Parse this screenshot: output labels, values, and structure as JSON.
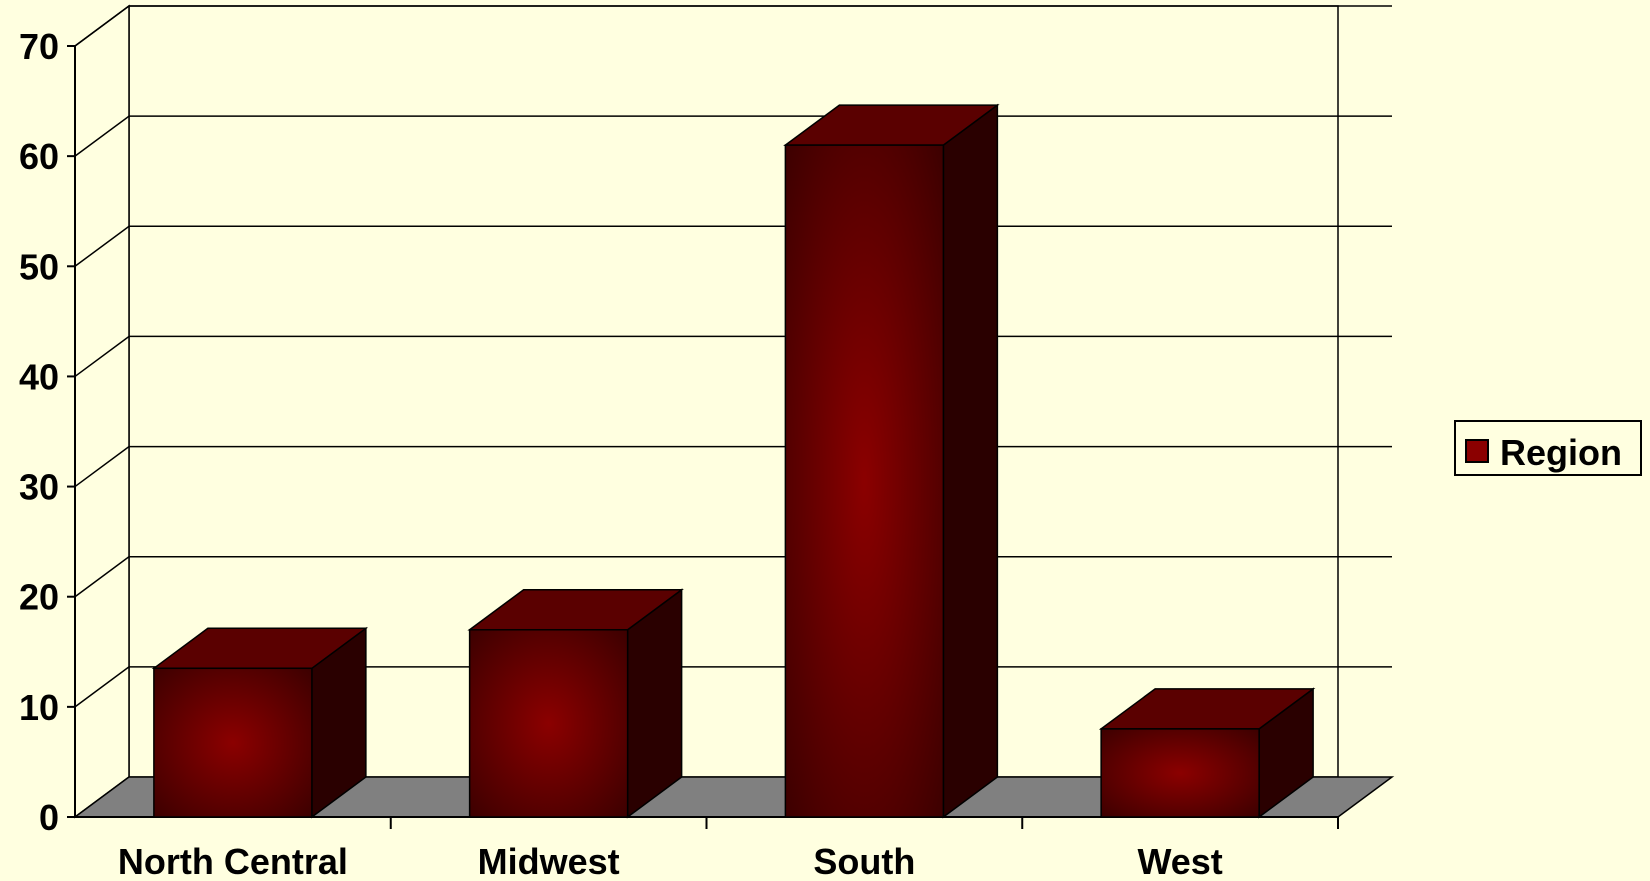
{
  "chart_data": {
    "type": "bar",
    "title": "",
    "xlabel": "",
    "ylabel": "",
    "categories": [
      "North Central",
      "Midwest",
      "South",
      "West"
    ],
    "series": [
      {
        "name": "Region",
        "values": [
          13.5,
          17,
          61,
          8
        ]
      }
    ],
    "ylim": [
      0,
      70
    ],
    "yticks": [
      0,
      10,
      20,
      30,
      40,
      50,
      60,
      70
    ],
    "grid": true,
    "legend": "right",
    "style": "3d",
    "colors": {
      "background": "#ffffe0",
      "bar": "#8b0000",
      "floor": "#808080",
      "grid": "#000000"
    }
  }
}
